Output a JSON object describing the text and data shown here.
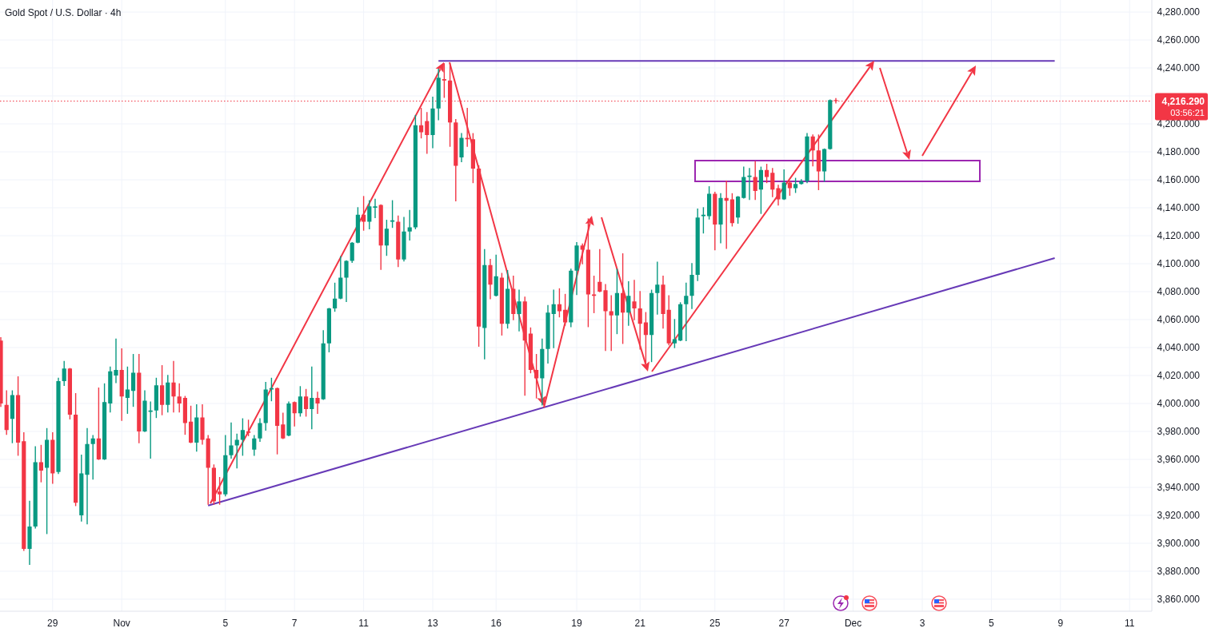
{
  "chart_data": {
    "type": "candlestick",
    "title": "Gold Spot / U.S. Dollar · 4h",
    "categories": [
      null,
      null,
      null,
      null,
      null,
      null,
      null,
      null,
      null,
      "29",
      null,
      null,
      null,
      null,
      null,
      null,
      null,
      null,
      null,
      null,
      null,
      "Nov",
      null,
      null,
      null,
      null,
      null,
      null,
      null,
      null,
      null,
      null,
      null,
      null,
      null,
      null,
      null,
      null,
      null,
      "5",
      null,
      null,
      null,
      null,
      null,
      null,
      null,
      null,
      null,
      null,
      null,
      "7",
      null,
      null,
      null,
      null,
      null,
      null,
      null,
      null,
      null,
      null,
      null,
      "11",
      null,
      null,
      null,
      null,
      null,
      null,
      null,
      null,
      null,
      null,
      null,
      "13",
      null,
      null,
      null,
      null,
      null,
      null,
      null,
      null,
      null,
      null,
      "16",
      null,
      null,
      null,
      null,
      null,
      null,
      null,
      null,
      null,
      null,
      null,
      null,
      null,
      "19",
      null,
      null,
      null,
      null,
      null,
      null,
      null,
      null,
      null,
      null,
      "21",
      null,
      null,
      null,
      null,
      null,
      null,
      null,
      null,
      null,
      null,
      null,
      null,
      "25",
      null,
      null,
      null,
      null,
      null,
      null,
      null,
      null,
      null,
      null,
      null,
      "27",
      null,
      null,
      null,
      null,
      null,
      null,
      null,
      null,
      null,
      null,
      null,
      "Dec",
      null,
      null,
      null,
      null,
      null,
      null,
      null,
      null,
      null,
      null,
      null,
      "3",
      null,
      null,
      null,
      null,
      null,
      null,
      null,
      null,
      null,
      null,
      null,
      "5",
      null,
      null,
      null,
      null,
      null,
      null,
      null,
      null,
      null,
      null,
      null,
      "9",
      null,
      null,
      null,
      null,
      null,
      null,
      null,
      null,
      null,
      null,
      null,
      "11",
      null,
      null,
      null
    ],
    "ohlc": [
      [
        4045,
        4047,
        3998,
        4000
      ],
      [
        3999,
        4009,
        3978,
        3981
      ],
      [
        3989,
        4009,
        3972,
        4006
      ],
      [
        4006,
        4019,
        3963,
        3972
      ],
      [
        3973,
        3979,
        3895,
        3896
      ],
      [
        3896,
        3930,
        3885,
        3912
      ],
      [
        3912,
        3969,
        3911,
        3958
      ],
      [
        3958,
        3970,
        3944,
        3952
      ],
      [
        3954,
        3982,
        3907,
        3974
      ],
      [
        3974,
        3979,
        3943,
        3950
      ],
      [
        3951,
        4018,
        3950,
        4016
      ],
      [
        4016,
        4030,
        4013,
        4025
      ],
      [
        4025,
        4025,
        3989,
        3992
      ],
      [
        3992,
        4007,
        3927,
        3929
      ],
      [
        3920,
        3963,
        3916,
        3950
      ],
      [
        3949,
        3982,
        3914,
        3971
      ],
      [
        3971,
        3977,
        3946,
        3975
      ],
      [
        3975,
        4011,
        3960,
        3960
      ],
      [
        3960,
        4014,
        3960,
        4001
      ],
      [
        4000,
        4026,
        3994,
        4023
      ],
      [
        4020,
        4046,
        4015,
        4024
      ],
      [
        4024,
        4039,
        3988,
        4005
      ],
      [
        4004,
        4026,
        3993,
        4010
      ],
      [
        4009,
        4035,
        3998,
        4022
      ],
      [
        4022,
        4035,
        3972,
        3980
      ],
      [
        3980,
        4009,
        3980,
        4002
      ],
      [
        3994,
        4001,
        3961,
        3995
      ],
      [
        3995,
        4018,
        3990,
        4013
      ],
      [
        4013,
        4027,
        3992,
        3999
      ],
      [
        3999,
        4020,
        3994,
        4015
      ],
      [
        4015,
        4030,
        3994,
        4005
      ],
      [
        4005,
        4014,
        3994,
        4000
      ],
      [
        4004,
        4005,
        3978,
        3986
      ],
      [
        3987,
        3998,
        3972,
        3972
      ],
      [
        3972,
        3999,
        3966,
        3990
      ],
      [
        3990,
        3999,
        3971,
        3974
      ],
      [
        3975,
        3977,
        3928,
        3954
      ],
      [
        3954,
        3956,
        3928,
        3930
      ],
      [
        3937,
        3947,
        3928,
        3935
      ],
      [
        3935,
        3977,
        3934,
        3963
      ],
      [
        3963,
        3986,
        3961,
        3970
      ],
      [
        3970,
        3978,
        3954,
        3974
      ],
      [
        3974,
        3989,
        3963,
        3981
      ],
      [
        3980,
        3988,
        3977,
        3979
      ],
      [
        3967,
        3977,
        3963,
        3975
      ],
      [
        3975,
        3989,
        3973,
        3986
      ],
      [
        3986,
        4015,
        3981,
        4010
      ],
      [
        4010,
        4018,
        4002,
        4011
      ],
      [
        4011,
        4011,
        3964,
        3984
      ],
      [
        3985,
        3993,
        3975,
        3975
      ],
      [
        3977,
        4001,
        3977,
        4000
      ],
      [
        4001,
        4001,
        3984,
        3993
      ],
      [
        3993,
        4012,
        3991,
        4005
      ],
      [
        4005,
        4010,
        3991,
        3996
      ],
      [
        3996,
        4026,
        3982,
        4004
      ],
      [
        4004,
        4008,
        3993,
        4000
      ],
      [
        4003,
        4052,
        4003,
        4043
      ],
      [
        4043,
        4068,
        4037,
        4068
      ],
      [
        4068,
        4086,
        4066,
        4075
      ],
      [
        4075,
        4105,
        4075,
        4090
      ],
      [
        4090,
        4102,
        4073,
        4102
      ],
      [
        4102,
        4115,
        4101,
        4115
      ],
      [
        4115,
        4140,
        4115,
        4135
      ],
      [
        4135,
        4148,
        4124,
        4130
      ],
      [
        4130,
        4145,
        4125,
        4141
      ],
      [
        4140,
        4146,
        4133,
        4141
      ],
      [
        4142,
        4142,
        4096,
        4113
      ],
      [
        4113,
        4131,
        4106,
        4125
      ],
      [
        4130,
        4145,
        4126,
        4131
      ],
      [
        4130,
        4134,
        4098,
        4103
      ],
      [
        4103,
        4133,
        4102,
        4123
      ],
      [
        4123,
        4138,
        4117,
        4126
      ],
      [
        4126,
        4206,
        4125,
        4199
      ],
      [
        4199,
        4211,
        4190,
        4194
      ],
      [
        4202,
        4208,
        4179,
        4192
      ],
      [
        4192,
        4219,
        4183,
        4211
      ],
      [
        4211,
        4239,
        4203,
        4233
      ],
      [
        4232,
        4243,
        4219,
        4231
      ],
      [
        4231,
        4243,
        4184,
        4201
      ],
      [
        4201,
        4203,
        4145,
        4170
      ],
      [
        4176,
        4193,
        4173,
        4190
      ],
      [
        4190,
        4211,
        4184,
        4189
      ],
      [
        4189,
        4193,
        4158,
        4168
      ],
      [
        4168,
        4170,
        4041,
        4055
      ],
      [
        4054,
        4110,
        4032,
        4099
      ],
      [
        4099,
        4103,
        4075,
        4085
      ],
      [
        4077,
        4106,
        4077,
        4091
      ],
      [
        4090,
        4093,
        4049,
        4057
      ],
      [
        4057,
        4095,
        4054,
        4082
      ],
      [
        4082,
        4091,
        4060,
        4064
      ],
      [
        4064,
        4081,
        4052,
        4073
      ],
      [
        4073,
        4076,
        4006,
        4045
      ],
      [
        4050,
        4054,
        4022,
        4024
      ],
      [
        4024,
        4035,
        4004,
        4018
      ],
      [
        4018,
        4046,
        3999,
        4039
      ],
      [
        4039,
        4070,
        4029,
        4065
      ],
      [
        4064,
        4081,
        4040,
        4071
      ],
      [
        4071,
        4082,
        4062,
        4066
      ],
      [
        4067,
        4078,
        4056,
        4058
      ],
      [
        4058,
        4096,
        4055,
        4095
      ],
      [
        4095,
        4115,
        4078,
        4113
      ],
      [
        4113,
        4114,
        4100,
        4110
      ],
      [
        4110,
        4132,
        4055,
        4078
      ],
      [
        4078,
        4091,
        4065,
        4077
      ],
      [
        4087,
        4110,
        4080,
        4080
      ],
      [
        4081,
        4085,
        4038,
        4066
      ],
      [
        4066,
        4077,
        4038,
        4063
      ],
      [
        4063,
        4096,
        4050,
        4079
      ],
      [
        4079,
        4107,
        4043,
        4065
      ],
      [
        4065,
        4087,
        4056,
        4077
      ],
      [
        4073,
        4088,
        4060,
        4068
      ],
      [
        4068,
        4080,
        4039,
        4057
      ],
      [
        4058,
        4065,
        4026,
        4049
      ],
      [
        4049,
        4081,
        4030,
        4079
      ],
      [
        4079,
        4101,
        4064,
        4085
      ],
      [
        4085,
        4091,
        4054,
        4064
      ],
      [
        4067,
        4077,
        4042,
        4043
      ],
      [
        4043,
        4060,
        4040,
        4046
      ],
      [
        4045,
        4072,
        4045,
        4071
      ],
      [
        4071,
        4086,
        4045,
        4077
      ],
      [
        4077,
        4100,
        4068,
        4092
      ],
      [
        4092,
        4139,
        4088,
        4133
      ],
      [
        4134,
        4140,
        4122,
        4135
      ],
      [
        4134,
        4155,
        4132,
        4150
      ],
      [
        4150,
        4151,
        4110,
        4128
      ],
      [
        4128,
        4150,
        4115,
        4147
      ],
      [
        4147,
        4159,
        4111,
        4145
      ],
      [
        4146,
        4150,
        4127,
        4129
      ],
      [
        4133,
        4148,
        4129,
        4148
      ],
      [
        4147,
        4169,
        4147,
        4162
      ],
      [
        4162,
        4168,
        4146,
        4163
      ],
      [
        4162,
        4173,
        4146,
        4152
      ],
      [
        4153,
        4169,
        4136,
        4167
      ],
      [
        4167,
        4171,
        4158,
        4162
      ],
      [
        4165,
        4168,
        4148,
        4153
      ],
      [
        4154,
        4156,
        4142,
        4146
      ],
      [
        4146,
        4167,
        4146,
        4158
      ],
      [
        4158,
        4159,
        4149,
        4154
      ],
      [
        4154,
        4161,
        4151,
        4157
      ],
      [
        4157,
        4160,
        4157,
        4159
      ],
      [
        4159,
        4193,
        4158,
        4191
      ],
      [
        4191,
        4192,
        4170,
        4181
      ],
      [
        4181,
        4192,
        4153,
        4166
      ],
      [
        4166,
        4182,
        4159,
        4182
      ],
      [
        4182,
        4217,
        4182,
        4217
      ],
      [
        4217,
        4218,
        4215,
        4216.29
      ],
      null,
      null,
      null,
      null,
      null,
      null,
      null,
      null,
      null,
      null,
      null,
      null,
      null,
      null,
      null,
      null,
      null,
      null,
      null,
      null,
      null,
      null,
      null,
      null,
      null,
      null,
      null,
      null,
      null,
      null,
      null,
      null,
      null,
      null,
      null,
      null,
      null,
      null,
      null,
      null,
      null,
      null,
      null,
      null,
      null,
      null,
      null,
      null,
      null,
      null,
      null,
      null,
      null,
      null
    ],
    "series": [
      {
        "type": "line",
        "color": "#673ab7",
        "values": [
          null,
          null,
          null,
          null,
          null,
          null,
          null,
          null,
          null,
          null,
          null,
          null,
          null,
          null,
          null,
          null,
          null,
          null,
          null,
          null,
          null,
          null,
          null,
          null,
          null,
          null,
          null,
          null,
          null,
          null,
          null,
          null,
          null,
          null,
          null,
          null,
          null,
          null,
          null,
          null,
          null,
          null,
          null,
          null,
          null,
          null,
          null,
          null,
          null,
          null,
          null,
          null,
          null,
          null,
          null,
          null,
          null,
          null,
          null,
          null,
          null,
          null,
          null,
          null,
          null,
          null,
          null,
          null,
          null,
          null,
          null,
          null,
          null,
          null,
          null,
          null,
          4245,
          null,
          null,
          null,
          null,
          null,
          null,
          null,
          null,
          null,
          null,
          null,
          null,
          null,
          null,
          null,
          null,
          null,
          null,
          null,
          null,
          null,
          null,
          null,
          null,
          null,
          null,
          null,
          null,
          null,
          null,
          null,
          null,
          null,
          null,
          null,
          null,
          null,
          null,
          null,
          null,
          null,
          null,
          null,
          null,
          null,
          null,
          null,
          null,
          null,
          null,
          null,
          null,
          null,
          null,
          null,
          null,
          null,
          null,
          null,
          null,
          null,
          null,
          null,
          null,
          null,
          null,
          null,
          null,
          null,
          null,
          null,
          null,
          null,
          null,
          null,
          null,
          null,
          null,
          null,
          null,
          null,
          null,
          null,
          null,
          null,
          null,
          null,
          null,
          null,
          null,
          null,
          null,
          null,
          null,
          null,
          null,
          null,
          null,
          null,
          null,
          null,
          null,
          null,
          null,
          null,
          null,
          4245,
          null,
          null,
          null,
          null,
          null,
          null,
          null,
          null,
          null,
          null,
          null,
          null,
          null,
          null,
          null,
          null
        ]
      },
      {
        "type": "line",
        "color": "#673ab7",
        "values": [
          null,
          null,
          null,
          null,
          null,
          null,
          null,
          null,
          null,
          null,
          null,
          null,
          null,
          null,
          null,
          null,
          null,
          null,
          null,
          null,
          null,
          null,
          null,
          null,
          null,
          null,
          null,
          null,
          null,
          null,
          null,
          null,
          null,
          null,
          null,
          null,
          3927,
          null,
          null,
          null,
          null,
          null,
          null,
          null,
          null,
          null,
          null,
          null,
          null,
          null,
          null,
          null,
          null,
          null,
          null,
          null,
          null,
          null,
          null,
          null,
          null,
          null,
          null,
          null,
          null,
          null,
          null,
          null,
          null,
          null,
          null,
          null,
          null,
          null,
          null,
          null,
          null,
          null,
          null,
          null,
          null,
          null,
          null,
          null,
          null,
          null,
          null,
          null,
          null,
          null,
          null,
          null,
          null,
          null,
          null,
          null,
          null,
          null,
          null,
          null,
          null,
          null,
          null,
          null,
          null,
          null,
          null,
          null,
          null,
          null,
          null,
          null,
          null,
          null,
          null,
          null,
          null,
          null,
          null,
          null,
          null,
          null,
          null,
          null,
          null,
          null,
          null,
          null,
          null,
          null,
          null,
          null,
          null,
          null,
          null,
          null,
          null,
          null,
          null,
          null,
          null,
          null,
          null,
          null,
          null,
          null,
          null,
          null,
          null,
          null,
          null,
          null,
          null,
          null,
          null,
          null,
          null,
          null,
          null,
          null,
          null,
          null,
          null,
          null,
          null,
          null,
          null,
          null,
          null,
          null,
          null,
          null,
          null,
          null,
          null,
          null,
          null,
          null,
          null,
          null,
          null,
          null,
          null,
          4104,
          null,
          null,
          null,
          null,
          null,
          null,
          null,
          null,
          null,
          null,
          null,
          null,
          null,
          null,
          null,
          null
        ]
      }
    ],
    "ref_lines": [
      {
        "axis": "y",
        "value": 4216.29,
        "label": "4,216.290",
        "color": "#f23645",
        "line_style": "dotted"
      }
    ],
    "annotations": [
      "03:56:21"
    ],
    "ylim": [
      3851.4,
      4288.6
    ],
    "yticks": [
      {
        "value": 3860,
        "label": "3,860.000"
      },
      {
        "value": 3880,
        "label": "3,880.000"
      },
      {
        "value": 3900,
        "label": "3,900.000"
      },
      {
        "value": 3920,
        "label": "3,920.000"
      },
      {
        "value": 3940,
        "label": "3,940.000"
      },
      {
        "value": 3960,
        "label": "3,960.000"
      },
      {
        "value": 3980,
        "label": "3,980.000"
      },
      {
        "value": 4000,
        "label": "4,000.000"
      },
      {
        "value": 4020,
        "label": "4,020.000"
      },
      {
        "value": 4040,
        "label": "4,040.000"
      },
      {
        "value": 4060,
        "label": "4,060.000"
      },
      {
        "value": 4080,
        "label": "4,080.000"
      },
      {
        "value": 4100,
        "label": "4,100.000"
      },
      {
        "value": 4120,
        "label": "4,120.000"
      },
      {
        "value": 4140,
        "label": "4,140.000"
      },
      {
        "value": 4160,
        "label": "4,160.000"
      },
      {
        "value": 4180,
        "label": "4,180.000"
      },
      {
        "value": 4200,
        "label": "4,200.000"
      },
      {
        "value": 4220,
        "label": null
      },
      {
        "value": 4240,
        "label": "4,240.000"
      },
      {
        "value": 4260,
        "label": "4,260.000"
      },
      {
        "value": 4280,
        "label": "4,280.000"
      }
    ],
    "grid": true
  }
}
